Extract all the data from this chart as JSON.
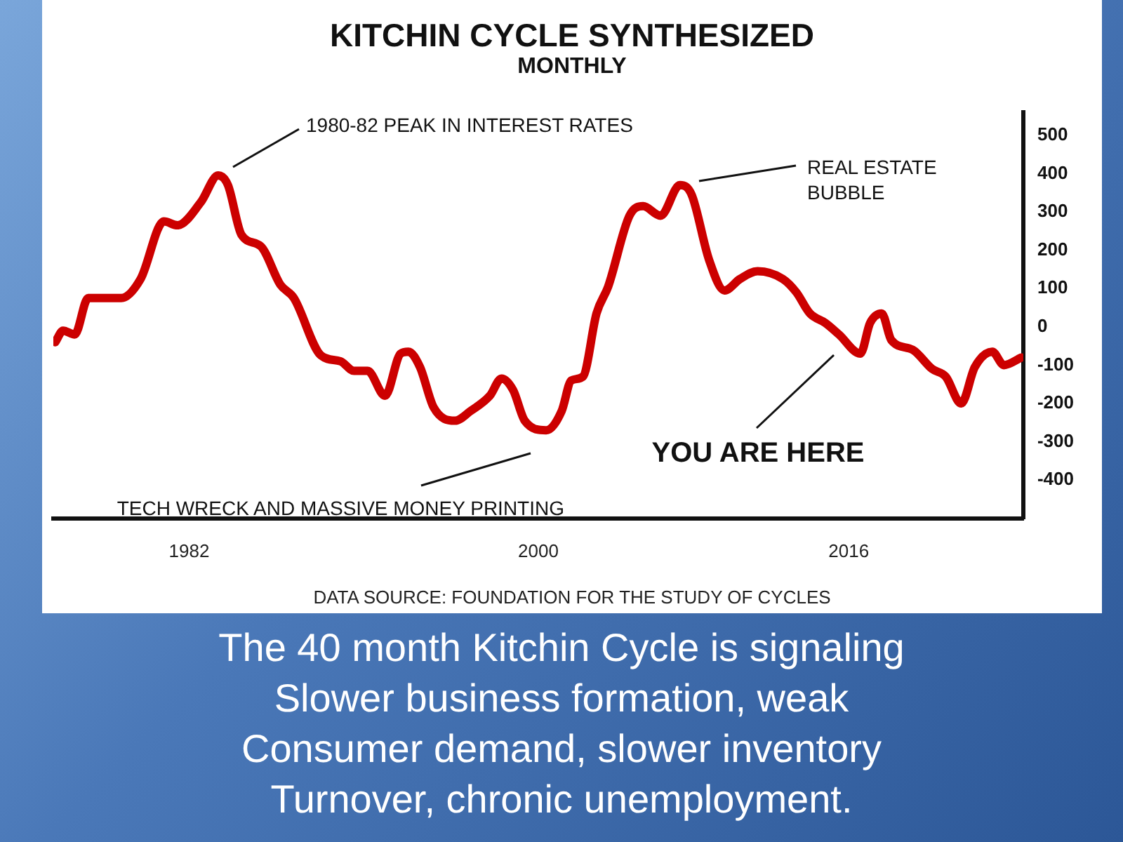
{
  "chart_data": {
    "type": "line",
    "title": "KITCHIN CYCLE SYNTHESIZED",
    "subtitle": "MONTHLY",
    "x": [
      1975.1,
      1975.5,
      1976.1,
      1976.8,
      1978.5,
      1979.5,
      1980.7,
      1981.4,
      1982.6,
      1983.5,
      1984.0,
      1984.7,
      1985.7,
      1986.7,
      1987.4,
      1988.8,
      1989.8,
      1990.5,
      1991.2,
      1992.1,
      1992.9,
      1993.3,
      1993.9,
      1994.6,
      1995.7,
      1996.5,
      1997.5,
      1998.1,
      1998.7,
      1999.3,
      2000.4,
      2001.2,
      2001.7,
      2002.3,
      2003.0,
      2003.6,
      2004.7,
      2005.4,
      2006.3,
      2007.3,
      2007.9,
      2008.8,
      2009.6,
      2010.4,
      2011.3,
      2012.6,
      2013.3,
      2014.0,
      2014.8,
      2015.5,
      2016.6,
      2017.1,
      2017.7,
      2018.2,
      2019.3,
      2020.3,
      2021.0,
      2021.8,
      2022.5,
      2023.4,
      2024.0,
      2024.9
    ],
    "series": [
      {
        "color": "#cc0000",
        "values": [
          -40,
          -10,
          -20,
          75,
          75,
          125,
          275,
          265,
          325,
          395,
          370,
          240,
          210,
          110,
          75,
          -75,
          -90,
          -115,
          -115,
          -180,
          -70,
          -65,
          -105,
          -210,
          -245,
          -220,
          -180,
          -135,
          -165,
          -245,
          -270,
          -220,
          -140,
          -130,
          35,
          105,
          290,
          315,
          290,
          370,
          345,
          175,
          95,
          125,
          145,
          125,
          90,
          35,
          10,
          -20,
          -70,
          10,
          35,
          -35,
          -60,
          -110,
          -130,
          -200,
          -105,
          -65,
          -100,
          -80
        ]
      }
    ],
    "xlim": [
      1975,
      2025
    ],
    "xticks": [
      1982,
      2000,
      2016
    ],
    "ylim": [
      -500,
      560
    ],
    "yticks": [
      -400,
      -300,
      -200,
      -100,
      0,
      100,
      200,
      300,
      400,
      500
    ],
    "annotations": [
      "1980-82 PEAK IN INTEREST RATES",
      "REAL ESTATE BUBBLE",
      "TECH WRECK AND MASSIVE MONEY PRINTING",
      "YOU ARE HERE",
      "DATA SOURCE: FOUNDATION FOR THE STUDY OF CYCLES",
      "The 40 month Kitchin Cycle is signaling\nSlower business formation, weak\nConsumer demand, slower inventory\nTurnover, chronic unemployment."
    ]
  }
}
